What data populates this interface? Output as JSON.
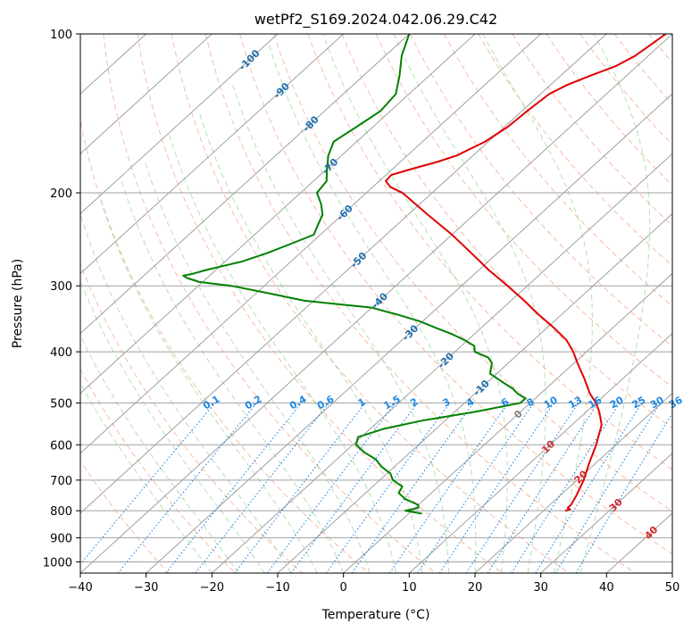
{
  "chart_data": {
    "type": "line",
    "subtype": "skew-T log-P diagram",
    "title": "wetPf2_S169.2024.042.06.29.C42",
    "xlabel": "Temperature (°C)",
    "ylabel": "Pressure (hPa)",
    "xlim": [
      -40,
      50
    ],
    "ylim": [
      1050,
      100
    ],
    "yscale": "log",
    "grid": true,
    "x_ticks": [
      -40,
      -30,
      -20,
      -10,
      0,
      10,
      20,
      30,
      40,
      50
    ],
    "x_tick_labels": [
      "−40",
      "−30",
      "−20",
      "−10",
      "0",
      "10",
      "20",
      "30",
      "40",
      "50"
    ],
    "y_ticks": [
      100,
      200,
      300,
      400,
      500,
      600,
      700,
      800,
      900,
      1000
    ],
    "y_tick_labels": [
      "100",
      "200",
      "300",
      "400",
      "500",
      "600",
      "700",
      "800",
      "900",
      "1000"
    ],
    "isotherm_labels": [
      {
        "value": -100,
        "text": "-100",
        "pressure": 112
      },
      {
        "value": -90,
        "text": "-90",
        "pressure": 128
      },
      {
        "value": -80,
        "text": "-80",
        "pressure": 148
      },
      {
        "value": -70,
        "text": "-70",
        "pressure": 178
      },
      {
        "value": -60,
        "text": "-60",
        "pressure": 218
      },
      {
        "value": -50,
        "text": "-50",
        "pressure": 268
      },
      {
        "value": -40,
        "text": "-40",
        "pressure": 320
      },
      {
        "value": -30,
        "text": "-30",
        "pressure": 368
      },
      {
        "value": -20,
        "text": "-20",
        "pressure": 415
      },
      {
        "value": -10,
        "text": "-10",
        "pressure": 468
      },
      {
        "value": 0,
        "text": "0",
        "pressure": 525
      },
      {
        "value": 10,
        "text": "10",
        "pressure": 605
      },
      {
        "value": 20,
        "text": "20",
        "pressure": 690
      },
      {
        "value": 30,
        "text": "30",
        "pressure": 780
      },
      {
        "value": 40,
        "text": "40",
        "pressure": 880
      }
    ],
    "mixing_ratio_labels": [
      "0.1",
      "0.2",
      "0.4",
      "0.6",
      "1",
      "1.5",
      "2",
      "3",
      "4",
      "6",
      "8",
      "10",
      "13",
      "16",
      "20",
      "25",
      "30",
      "36"
    ],
    "mixing_ratio_values": [
      0.1,
      0.2,
      0.4,
      0.6,
      1,
      1.5,
      2,
      3,
      4,
      6,
      8,
      10,
      13,
      16,
      20,
      25,
      30,
      36
    ],
    "colors": {
      "temperature": "#e00000",
      "dewpoint": "#008000",
      "isotherm_grid": "#a0a0a0",
      "dry_adiabat": "#f4a582",
      "moist_adiabat": "#98d098",
      "mixing_ratio": "#1e88e5",
      "isotherm_label_cold": "#1f6fae",
      "isotherm_label_warm": "#d62728",
      "isotherm_label_zero": "#808080"
    },
    "series": [
      {
        "name": "",
        "key": "temperature",
        "pressure": [
          800,
          795,
          790,
          780,
          750,
          700,
          650,
          600,
          550,
          520,
          500,
          480,
          450,
          420,
          400,
          380,
          360,
          340,
          320,
          300,
          280,
          260,
          240,
          220,
          200,
          195,
          190,
          185,
          180,
          175,
          170,
          160,
          150,
          140,
          130,
          125,
          120,
          115,
          110,
          105,
          100
        ],
        "temperature": [
          23.3,
          23.8,
          23.2,
          23.2,
          22.5,
          21.0,
          19.0,
          17.0,
          14.5,
          12.0,
          10.0,
          7.5,
          4.2,
          0.5,
          -2.0,
          -5.0,
          -9.0,
          -13.5,
          -18.0,
          -23.0,
          -28.5,
          -34.0,
          -40.0,
          -47.0,
          -54.5,
          -57.3,
          -59.0,
          -59.2,
          -57.0,
          -54.5,
          -52.5,
          -50.5,
          -49.5,
          -49.2,
          -48.7,
          -47.5,
          -45.5,
          -43.2,
          -42.0,
          -41.5,
          -41.0
        ]
      },
      {
        "name": "",
        "key": "dewpoint",
        "pressure": [
          810,
          800,
          790,
          780,
          760,
          740,
          720,
          700,
          680,
          660,
          640,
          620,
          600,
          580,
          560,
          540,
          520,
          500,
          490,
          480,
          470,
          460,
          450,
          440,
          420,
          410,
          400,
          390,
          380,
          370,
          360,
          350,
          340,
          330,
          320,
          310,
          300,
          295,
          290,
          287,
          285,
          280,
          270,
          260,
          250,
          240,
          230,
          220,
          210,
          200,
          190,
          180,
          170,
          160,
          150,
          140,
          130,
          120,
          110,
          100
        ],
        "dewpoint": [
          2.0,
          -1.0,
          0.5,
          0.0,
          -3.0,
          -5.0,
          -5.5,
          -8.0,
          -9.5,
          -12.0,
          -14.0,
          -17.0,
          -19.5,
          -20.5,
          -18.0,
          -13.5,
          -7.0,
          -1.5,
          -1.5,
          -3.5,
          -5.0,
          -7.0,
          -9.0,
          -11.0,
          -12.5,
          -14.0,
          -17.0,
          -18.0,
          -20.5,
          -23.5,
          -27.0,
          -30.5,
          -35.0,
          -40.0,
          -51.5,
          -58.0,
          -65.0,
          -70.5,
          -73.0,
          -74.0,
          -73.0,
          -71.5,
          -67.5,
          -65.0,
          -63.0,
          -61.0,
          -62.0,
          -63.0,
          -65.0,
          -67.5,
          -68.0,
          -70.0,
          -72.0,
          -73.5,
          -72.5,
          -71.5,
          -72.0,
          -74.5,
          -77.5,
          -80.0
        ]
      }
    ]
  }
}
